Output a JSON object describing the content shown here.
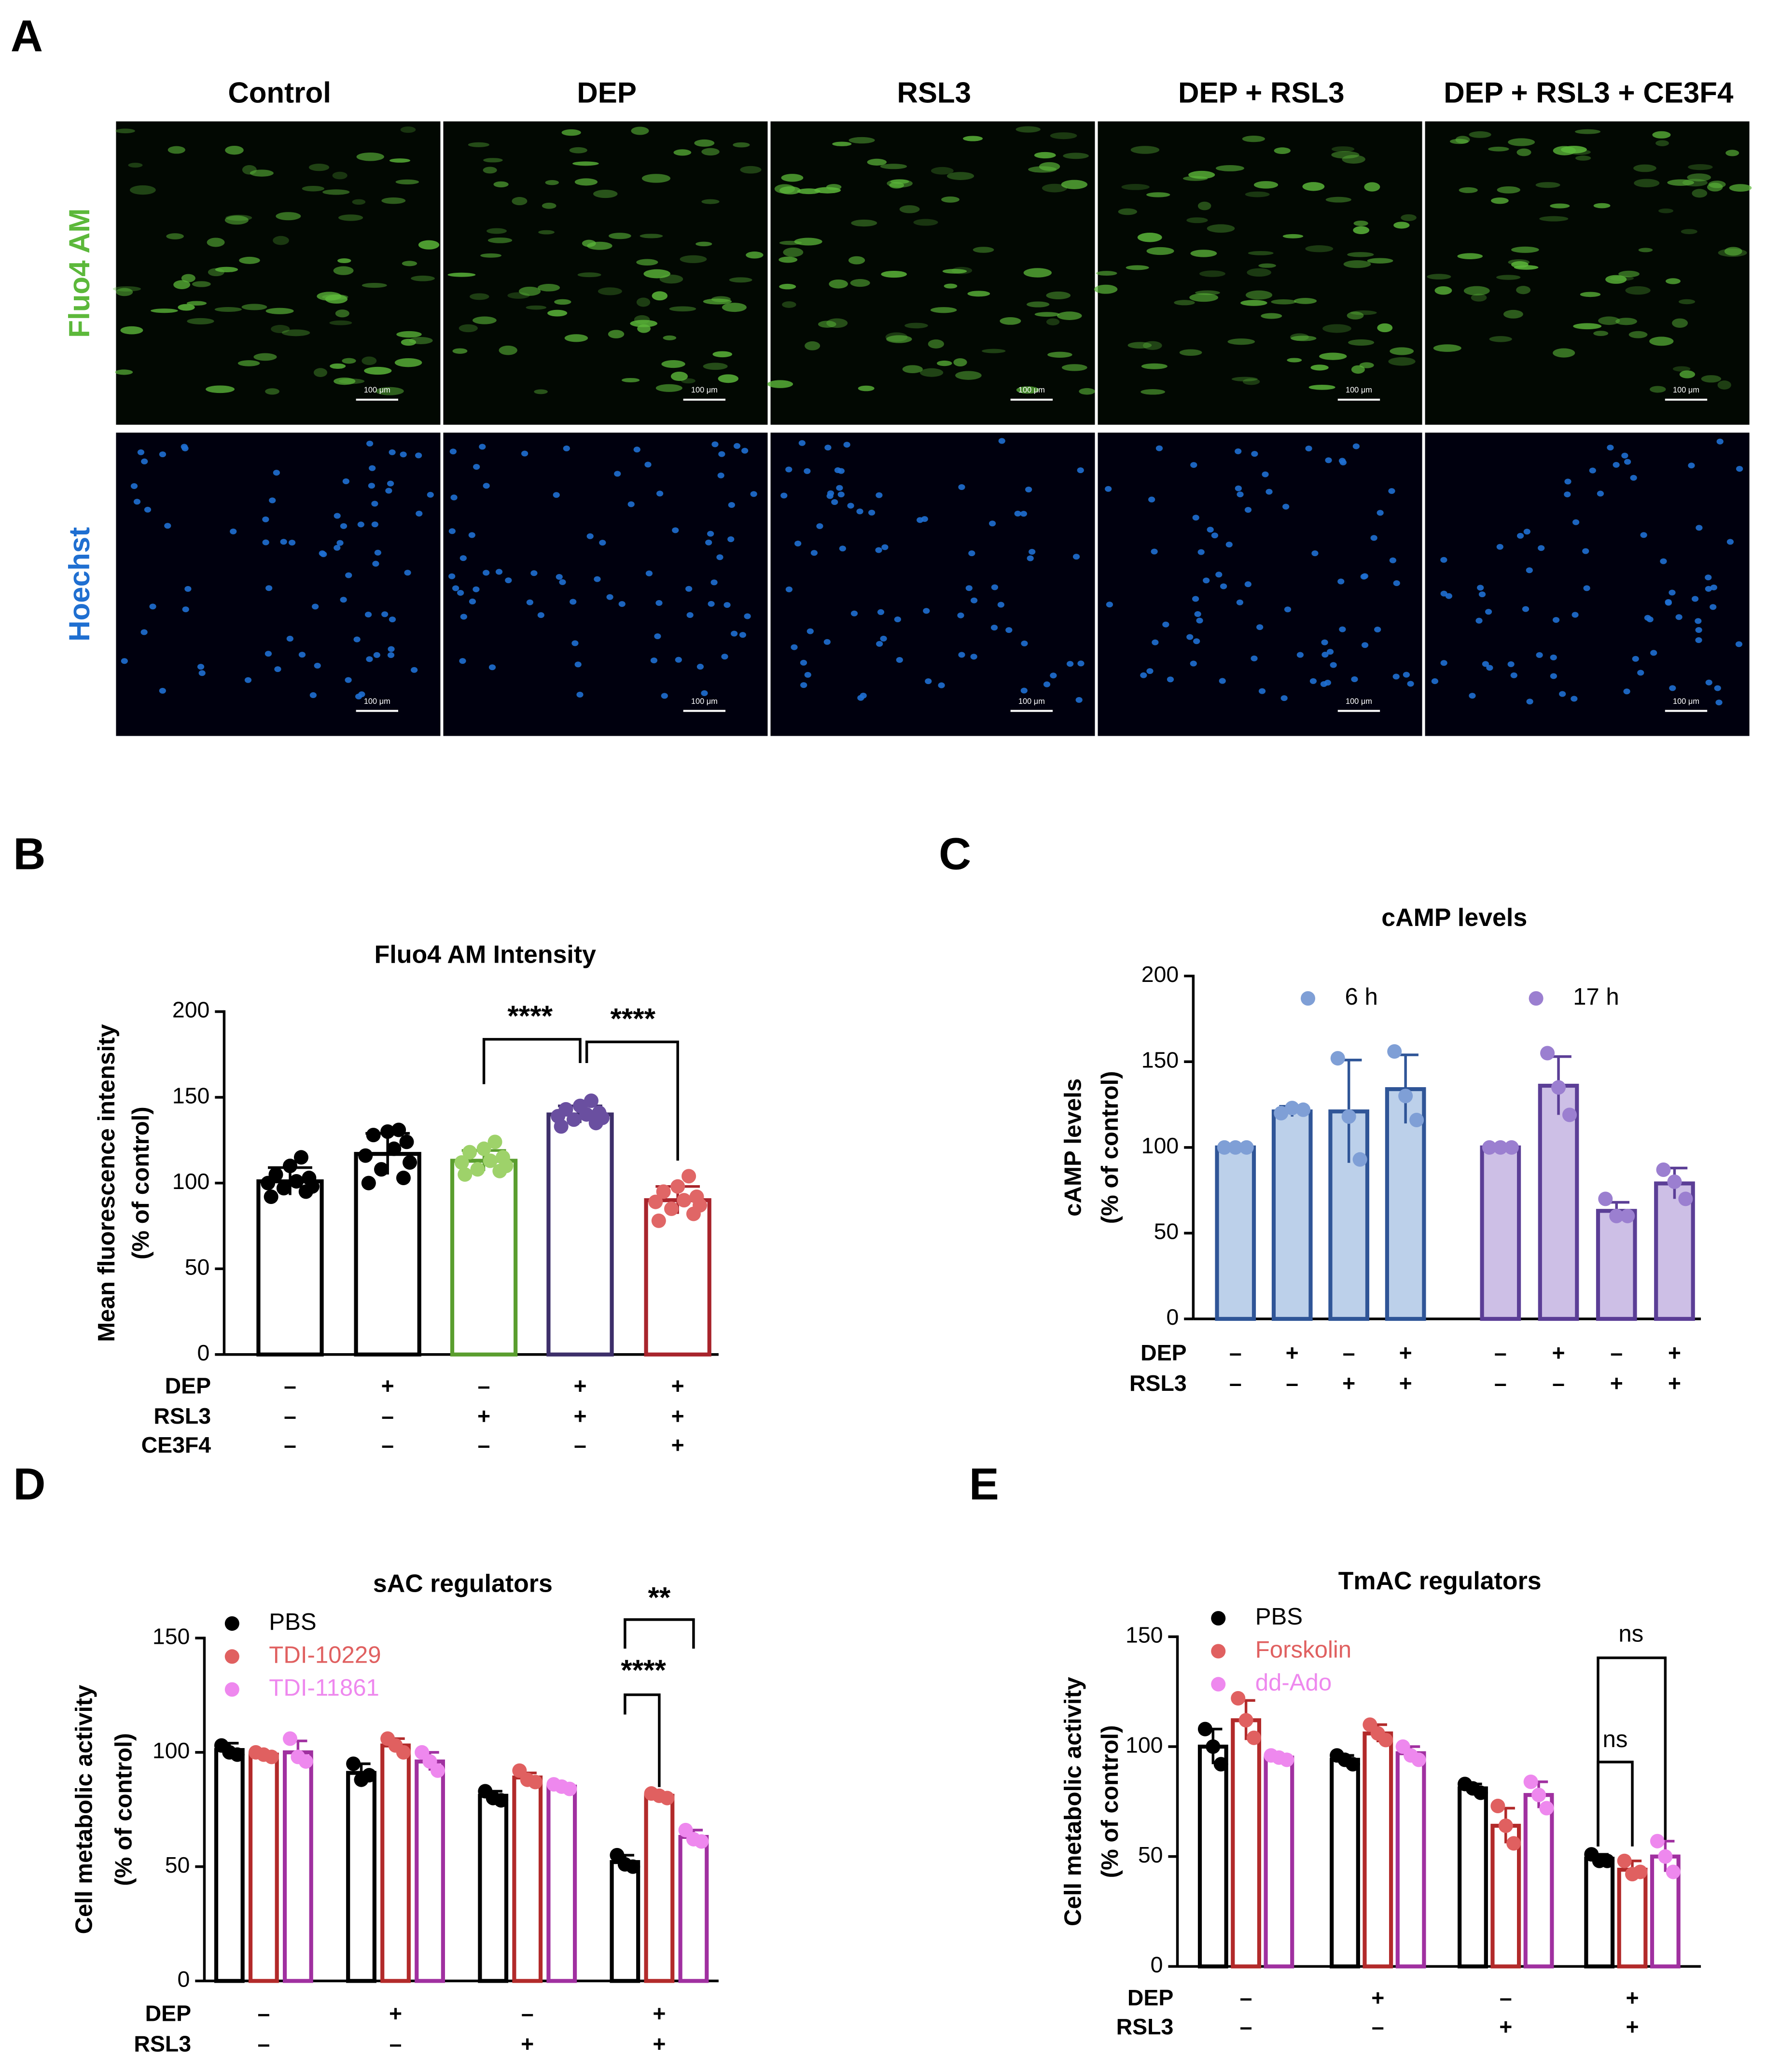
{
  "panel_a": {
    "label": "A",
    "columns": [
      "Control",
      "DEP",
      "RSL3",
      "DEP + RSL3",
      "DEP + RSL3 + CE3F4"
    ],
    "rows": [
      "Fluo4 AM",
      "Hoechst"
    ],
    "row_colors": [
      "#5cb83a",
      "#1f6fd1"
    ],
    "scale_bar": "100 μm"
  },
  "chart_data": [
    {
      "type": "bar",
      "panel": "B",
      "title": "Fluo4 AM Intensity",
      "ylabel": [
        "Mean fluorescence intensity",
        "(% of control)"
      ],
      "ylim": [
        0,
        200
      ],
      "yticks": [
        0,
        50,
        100,
        150,
        200
      ],
      "fill": "#ffffff",
      "values": [
        101,
        117,
        113,
        140,
        90
      ],
      "errors": [
        8,
        12,
        6,
        5,
        8
      ],
      "colors": [
        "#000000",
        "#000000",
        "#5a9e2e",
        "#3d2f6a",
        "#a8242c"
      ],
      "point_colors": [
        "#000000",
        "#000000",
        "#9ed26a",
        "#6a4fa0",
        "#e06666"
      ],
      "points": [
        [
          92,
          95,
          97,
          98,
          100,
          101,
          103,
          105,
          110,
          115
        ],
        [
          100,
          103,
          108,
          112,
          116,
          120,
          124,
          128,
          130,
          131
        ],
        [
          105,
          107,
          108,
          110,
          112,
          113,
          115,
          118,
          120,
          124
        ],
        [
          133,
          135,
          137,
          138,
          139,
          140,
          141,
          143,
          145,
          148
        ],
        [
          78,
          82,
          85,
          87,
          89,
          90,
          92,
          95,
          98,
          104
        ]
      ],
      "conditions": [
        {
          "name": "DEP",
          "marks": [
            "–",
            "+",
            "–",
            "+",
            "+"
          ]
        },
        {
          "name": "RSL3",
          "marks": [
            "–",
            "–",
            "+",
            "+",
            "+"
          ]
        },
        {
          "name": "CE3F4",
          "marks": [
            "–",
            "–",
            "–",
            "–",
            "+"
          ]
        }
      ],
      "annotations": [
        "****",
        "****"
      ]
    },
    {
      "type": "bar",
      "panel": "C",
      "title": "cAMP levels",
      "ylabel": [
        "cAMP levels",
        "(% of control)"
      ],
      "ylim": [
        0,
        200
      ],
      "yticks": [
        0,
        50,
        100,
        150,
        200
      ],
      "series": [
        {
          "name": "6 h",
          "color": "#2f5597",
          "fill": "#bcd0ea",
          "point_color": "#7f9fd6",
          "values": [
            100,
            121,
            121,
            134
          ],
          "errors": [
            0,
            3,
            30,
            20
          ],
          "points": [
            [
              100,
              100,
              100
            ],
            [
              120,
              123,
              122
            ],
            [
              152,
              118,
              93
            ],
            [
              156,
              130,
              116
            ]
          ]
        },
        {
          "name": "17 h",
          "color": "#5b3e96",
          "fill": "#cdbfe6",
          "point_color": "#9b7fd0",
          "values": [
            100,
            136,
            63,
            79
          ],
          "errors": [
            0,
            17,
            5,
            9
          ],
          "points": [
            [
              100,
              100,
              100
            ],
            [
              155,
              135,
              119
            ],
            [
              70,
              60,
              60
            ],
            [
              87,
              80,
              70
            ]
          ]
        }
      ],
      "conditions": [
        {
          "name": "DEP",
          "marks": [
            "–",
            "+",
            "–",
            "+",
            "–",
            "+",
            "–",
            "+"
          ]
        },
        {
          "name": "RSL3",
          "marks": [
            "–",
            "–",
            "+",
            "+",
            "–",
            "–",
            "+",
            "+"
          ]
        }
      ]
    },
    {
      "type": "bar",
      "panel": "D",
      "title": "sAC regulators",
      "ylabel": [
        "Cell metabolic activity",
        "(% of control)"
      ],
      "ylim": [
        0,
        150
      ],
      "yticks": [
        0,
        50,
        100,
        150
      ],
      "series": [
        {
          "name": "PBS",
          "color": "#000000",
          "fill": "#ffffff",
          "point_color": "#000000",
          "values": [
            101,
            91,
            81,
            52
          ],
          "errors": [
            3,
            4,
            2,
            3
          ],
          "points": [
            [
              103,
              100,
              99
            ],
            [
              95,
              88,
              90
            ],
            [
              83,
              80,
              79
            ],
            [
              55,
              51,
              50
            ]
          ]
        },
        {
          "name": "TDI-10229",
          "color": "#b22a2a",
          "fill": "#ffffff",
          "point_color": "#e06060",
          "values": [
            99,
            103,
            89,
            81
          ],
          "errors": [
            1,
            3,
            2,
            1
          ],
          "points": [
            [
              100,
              99,
              98
            ],
            [
              106,
              103,
              100
            ],
            [
              92,
              88,
              87
            ],
            [
              82,
              81,
              80
            ]
          ]
        },
        {
          "name": "TDI-11861",
          "color": "#a030a0",
          "fill": "#ffffff",
          "point_color": "#ee88ee",
          "values": [
            100,
            96,
            85,
            63
          ],
          "errors": [
            5,
            4,
            1,
            3
          ],
          "points": [
            [
              106,
              98,
              96
            ],
            [
              100,
              96,
              92
            ],
            [
              86,
              85,
              84
            ],
            [
              66,
              62,
              61
            ]
          ]
        }
      ],
      "conditions": [
        {
          "name": "DEP",
          "marks": [
            "–",
            "+",
            "–",
            "+"
          ]
        },
        {
          "name": "RSL3",
          "marks": [
            "–",
            "–",
            "+",
            "+"
          ]
        }
      ],
      "annotations": [
        "****",
        "**"
      ]
    },
    {
      "type": "bar",
      "panel": "E",
      "title": "TmAC regulators",
      "ylabel": [
        "Cell metabolic activity",
        "(% of control)"
      ],
      "ylim": [
        0,
        150
      ],
      "yticks": [
        0,
        50,
        100,
        150
      ],
      "series": [
        {
          "name": "PBS",
          "color": "#000000",
          "fill": "#ffffff",
          "point_color": "#000000",
          "values": [
            100,
            94,
            81,
            49
          ],
          "errors": [
            8,
            2,
            2,
            2
          ],
          "points": [
            [
              108,
              100,
              92
            ],
            [
              96,
              94,
              92
            ],
            [
              83,
              81,
              79
            ],
            [
              51,
              48,
              48
            ]
          ]
        },
        {
          "name": "Forskolin",
          "color": "#b22a2a",
          "fill": "#ffffff",
          "point_color": "#e06060",
          "values": [
            112,
            106,
            64,
            44
          ],
          "errors": [
            9,
            4,
            8,
            4
          ],
          "points": [
            [
              122,
              112,
              104
            ],
            [
              110,
              106,
              103
            ],
            [
              73,
              64,
              56
            ],
            [
              48,
              42,
              43
            ]
          ]
        },
        {
          "name": "dd-Ado",
          "color": "#a030a0",
          "fill": "#ffffff",
          "point_color": "#ee88ee",
          "values": [
            95,
            97,
            78,
            50
          ],
          "errors": [
            1,
            3,
            6,
            7
          ],
          "points": [
            [
              96,
              95,
              94
            ],
            [
              100,
              96,
              94
            ],
            [
              84,
              78,
              72
            ],
            [
              57,
              50,
              43
            ]
          ]
        }
      ],
      "conditions": [
        {
          "name": "DEP",
          "marks": [
            "–",
            "+",
            "–",
            "+"
          ]
        },
        {
          "name": "RSL3",
          "marks": [
            "–",
            "–",
            "+",
            "+"
          ]
        }
      ],
      "annotations": [
        "ns",
        "ns"
      ]
    }
  ]
}
